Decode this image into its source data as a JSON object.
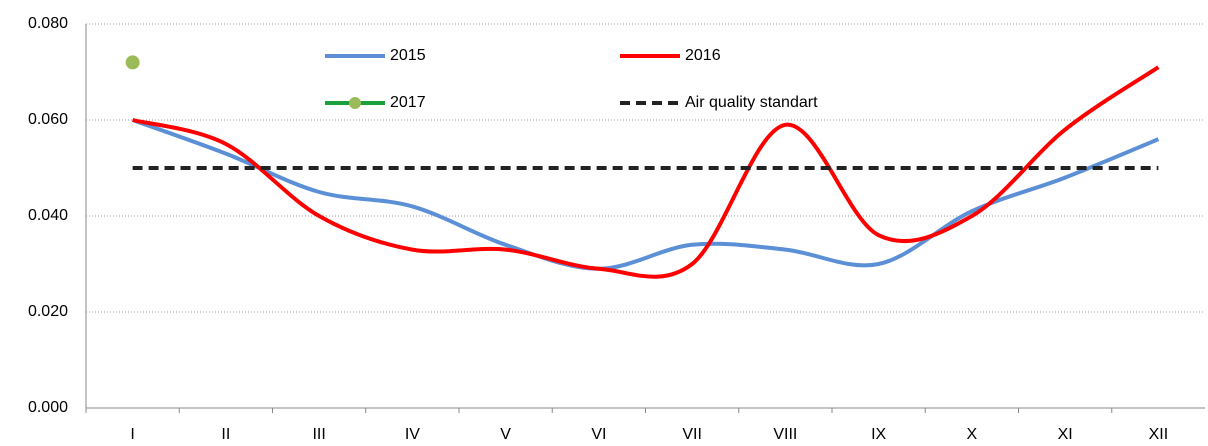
{
  "chart_data": {
    "type": "line",
    "categories": [
      "I",
      "II",
      "III",
      "IV",
      "V",
      "VI",
      "VII",
      "VIII",
      "IX",
      "X",
      "XI",
      "XII"
    ],
    "series": [
      {
        "name": "2015",
        "color": "#5b8fd6",
        "values": [
          0.06,
          0.053,
          0.045,
          0.042,
          0.034,
          0.029,
          0.034,
          0.033,
          0.03,
          0.041,
          0.048,
          0.056
        ]
      },
      {
        "name": "2016",
        "color": "#ff0000",
        "values": [
          0.06,
          0.055,
          0.04,
          0.033,
          0.033,
          0.029,
          0.03,
          0.059,
          0.036,
          0.04,
          0.058,
          0.071
        ]
      },
      {
        "name": "2017",
        "color": "#1aa13c",
        "marker_color": "#9bbb59",
        "values": [
          0.072,
          null,
          null,
          null,
          null,
          null,
          null,
          null,
          null,
          null,
          null,
          null
        ]
      },
      {
        "name": "Air quality standart",
        "color": "#222222",
        "line_style": "dashed",
        "values": [
          0.05,
          0.05,
          0.05,
          0.05,
          0.05,
          0.05,
          0.05,
          0.05,
          0.05,
          0.05,
          0.05,
          0.05
        ]
      }
    ],
    "ylim": [
      0,
      0.08
    ],
    "yticks": [
      {
        "value": 0,
        "label": "0.000"
      },
      {
        "value": 0.02,
        "label": "0.020"
      },
      {
        "value": 0.04,
        "label": "0.040"
      },
      {
        "value": 0.06,
        "label": "0.060"
      },
      {
        "value": 0.08,
        "label": "0.080"
      }
    ],
    "grid": true,
    "smooth": true
  }
}
